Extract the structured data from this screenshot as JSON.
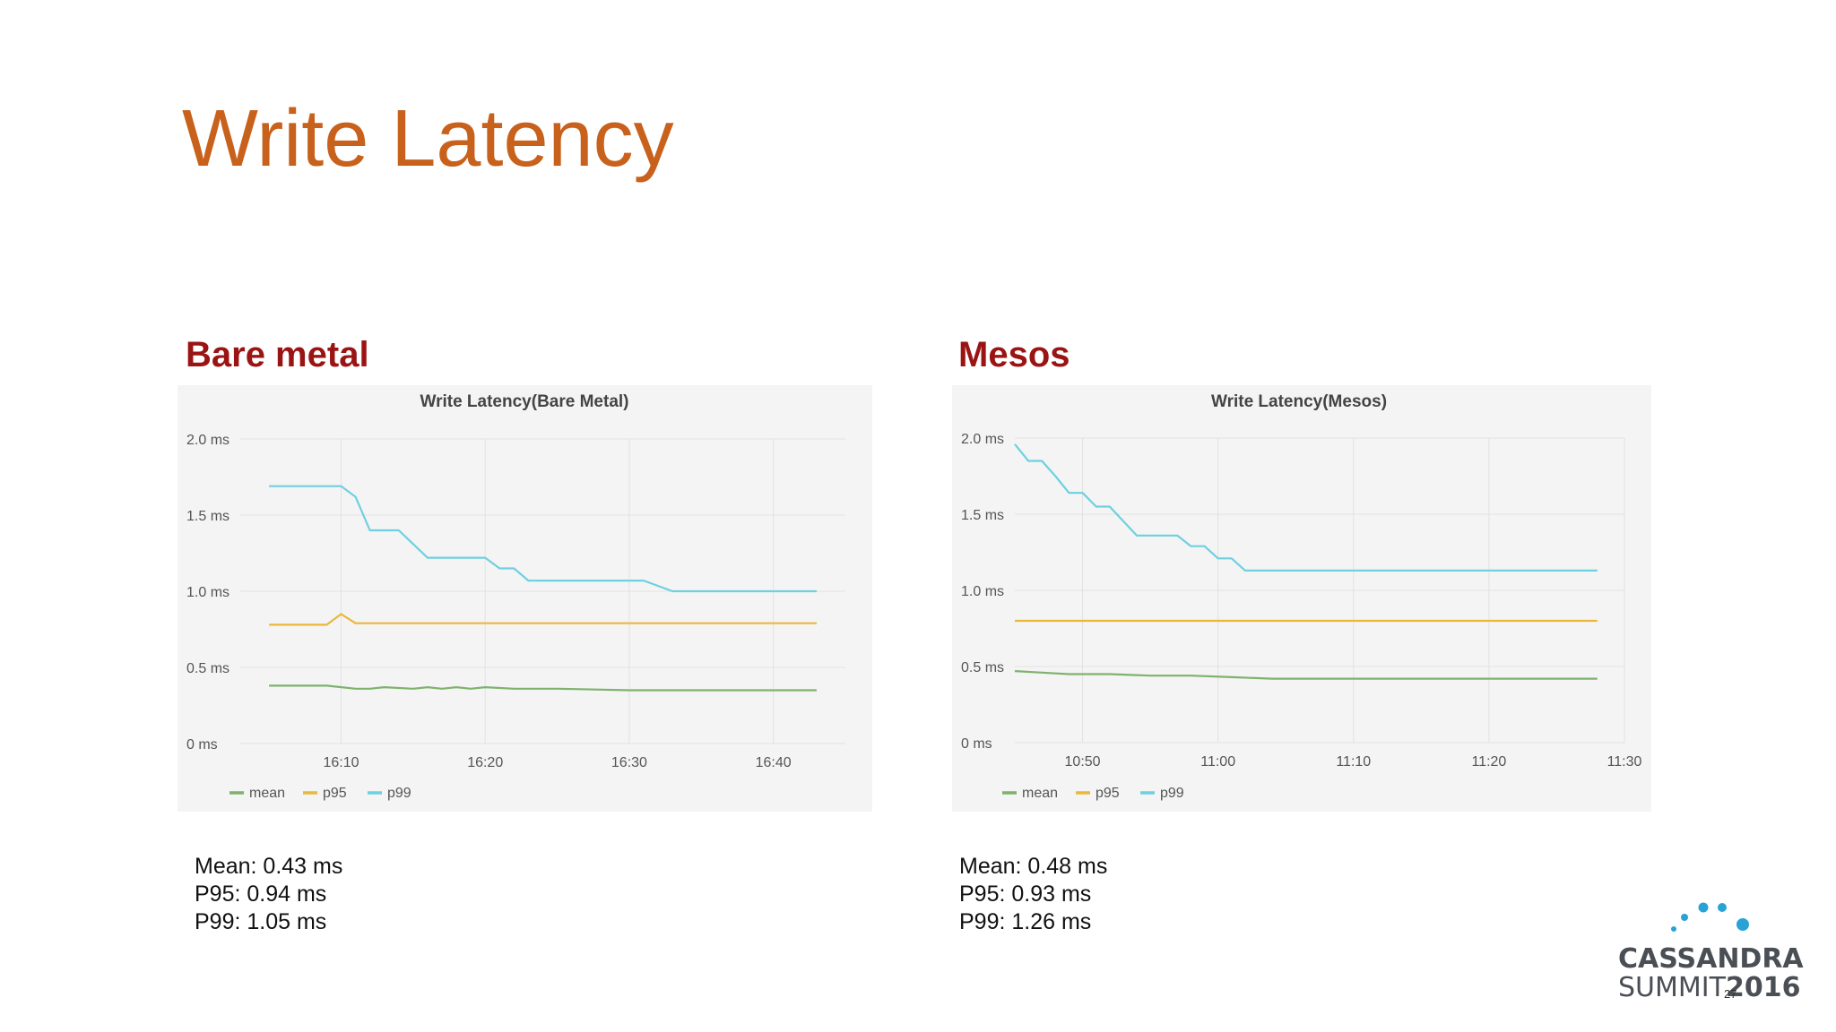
{
  "slide": {
    "title": "Write Latency",
    "page_number": "27"
  },
  "left": {
    "section_label": "Bare metal",
    "stats": [
      "Mean: 0.43 ms",
      "P95: 0.94 ms",
      "P99: 1.05 ms"
    ]
  },
  "right": {
    "section_label": "Mesos",
    "stats": [
      "Mean: 0.48 ms",
      "P95: 0.93 ms",
      "P99: 1.26 ms"
    ]
  },
  "logo": {
    "line1": "CASSANDRA",
    "line2": "SUMMIT",
    "year": "2016",
    "dot_color": "#29a3d6"
  },
  "colors": {
    "mean": "#7eb26d",
    "p95": "#eab839",
    "p99": "#6ed0e0"
  },
  "chart_data": [
    {
      "type": "line",
      "title": "Write Latency(Bare Metal)",
      "xlabel": "",
      "ylabel": "",
      "x_unit": "minutes",
      "xlim": [
        "16:03",
        "16:45"
      ],
      "ylim": [
        0,
        2.0
      ],
      "y_ticks": [
        0,
        0.5,
        1.0,
        1.5,
        2.0
      ],
      "y_tick_labels": [
        "0 ms",
        "0.5 ms",
        "1.0 ms",
        "1.5 ms",
        "2.0 ms"
      ],
      "x_ticks": [
        "16:10",
        "16:20",
        "16:30",
        "16:40"
      ],
      "grid": true,
      "legend": "bottom-left",
      "series": [
        {
          "name": "mean",
          "x": [
            "16:05",
            "16:09",
            "16:11",
            "16:12",
            "16:13",
            "16:15",
            "16:16",
            "16:17",
            "16:18",
            "16:19",
            "16:20",
            "16:22",
            "16:25",
            "16:30",
            "16:35",
            "16:43"
          ],
          "values": [
            0.38,
            0.38,
            0.36,
            0.36,
            0.37,
            0.36,
            0.37,
            0.36,
            0.37,
            0.36,
            0.37,
            0.36,
            0.36,
            0.35,
            0.35,
            0.35
          ]
        },
        {
          "name": "p95",
          "x": [
            "16:05",
            "16:09",
            "16:10",
            "16:11",
            "16:43"
          ],
          "values": [
            0.78,
            0.78,
            0.85,
            0.79,
            0.79
          ]
        },
        {
          "name": "p99",
          "x": [
            "16:05",
            "16:09",
            "16:10",
            "16:11",
            "16:12",
            "16:13",
            "16:14",
            "16:15",
            "16:16",
            "16:17",
            "16:20",
            "16:21",
            "16:22",
            "16:23",
            "16:30",
            "16:31",
            "16:33",
            "16:43"
          ],
          "values": [
            1.69,
            1.69,
            1.69,
            1.62,
            1.4,
            1.4,
            1.4,
            1.31,
            1.22,
            1.22,
            1.22,
            1.15,
            1.15,
            1.07,
            1.07,
            1.07,
            1.0,
            1.0
          ]
        }
      ]
    },
    {
      "type": "line",
      "title": "Write Latency(Mesos)",
      "xlabel": "",
      "ylabel": "",
      "x_unit": "minutes",
      "xlim": [
        "10:45",
        "11:30"
      ],
      "ylim": [
        0,
        2.0
      ],
      "y_ticks": [
        0,
        0.5,
        1.0,
        1.5,
        2.0
      ],
      "y_tick_labels": [
        "0 ms",
        "0.5 ms",
        "1.0 ms",
        "1.5 ms",
        "2.0 ms"
      ],
      "x_ticks": [
        "10:50",
        "11:00",
        "11:10",
        "11:20",
        "11:30"
      ],
      "grid": true,
      "legend": "bottom-left",
      "series": [
        {
          "name": "mean",
          "x": [
            "10:45",
            "10:47",
            "10:49",
            "10:52",
            "10:55",
            "10:58",
            "11:01",
            "11:04",
            "11:10",
            "11:20",
            "11:28"
          ],
          "values": [
            0.47,
            0.46,
            0.45,
            0.45,
            0.44,
            0.44,
            0.43,
            0.42,
            0.42,
            0.42,
            0.42
          ]
        },
        {
          "name": "p95",
          "x": [
            "10:45",
            "11:28"
          ],
          "values": [
            0.8,
            0.8
          ]
        },
        {
          "name": "p99",
          "x": [
            "10:45",
            "10:46",
            "10:47",
            "10:48",
            "10:49",
            "10:50",
            "10:51",
            "10:52",
            "10:54",
            "10:55",
            "10:57",
            "10:58",
            "10:59",
            "11:00",
            "11:01",
            "11:02",
            "11:28"
          ],
          "values": [
            1.96,
            1.85,
            1.85,
            1.75,
            1.64,
            1.64,
            1.55,
            1.55,
            1.36,
            1.36,
            1.36,
            1.29,
            1.29,
            1.21,
            1.21,
            1.13,
            1.13
          ]
        }
      ]
    }
  ]
}
